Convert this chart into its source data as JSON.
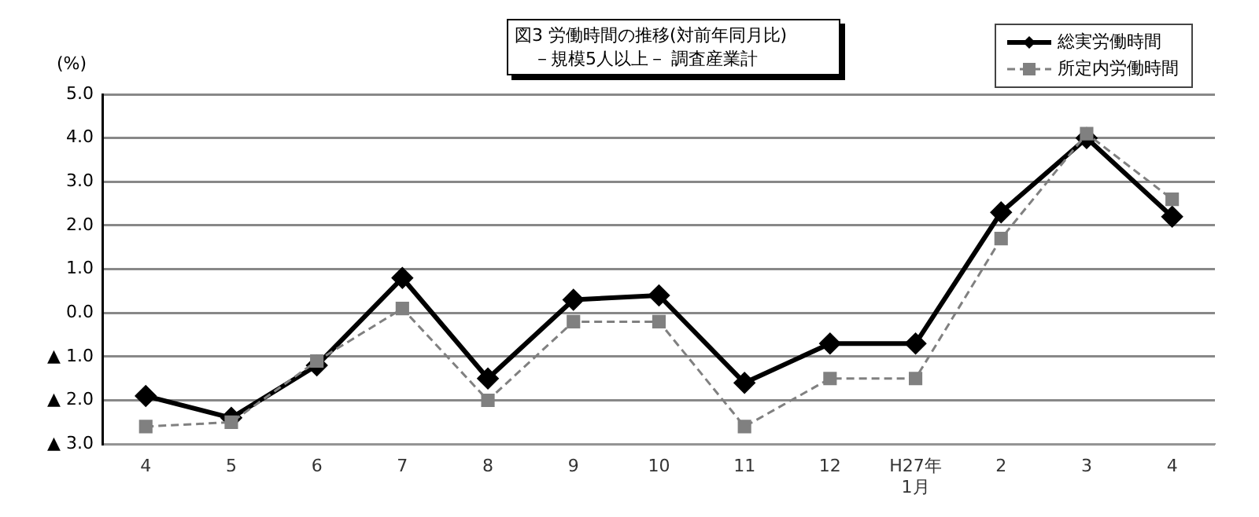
{
  "chart_data": {
    "type": "line",
    "title": "図3 労働時間の推移(対前年同月比)",
    "subtitle": "－規模5人以上－ 調査産業計",
    "ylabel": "(%)",
    "categories": [
      "4",
      "5",
      "6",
      "7",
      "8",
      "9",
      "10",
      "11",
      "12",
      "H27年\n1月",
      "2",
      "3",
      "4"
    ],
    "series": [
      {
        "name": "総実労働時間",
        "color": "#000000",
        "marker": "diamond",
        "line_style": "solid",
        "values": [
          -1.9,
          -2.4,
          -1.2,
          0.8,
          -1.5,
          0.3,
          0.4,
          -1.6,
          -0.7,
          -0.7,
          2.3,
          4.0,
          2.2
        ]
      },
      {
        "name": "所定内労働時間",
        "color": "#808080",
        "marker": "square",
        "line_style": "dashed",
        "values": [
          -2.6,
          -2.5,
          -1.1,
          0.1,
          -2.0,
          -0.2,
          -0.2,
          -2.6,
          -1.5,
          -1.5,
          1.7,
          4.1,
          2.6
        ]
      }
    ],
    "ylim": [
      -3,
      5
    ],
    "yticks": [
      {
        "value": -3,
        "label": "▲ 3.0"
      },
      {
        "value": -2,
        "label": "▲ 2.0"
      },
      {
        "value": -1,
        "label": "▲ 1.0"
      },
      {
        "value": 0,
        "label": "0.0"
      },
      {
        "value": 1,
        "label": "1.0"
      },
      {
        "value": 2,
        "label": "2.0"
      },
      {
        "value": 3,
        "label": "3.0"
      },
      {
        "value": 4,
        "label": "4.0"
      },
      {
        "value": 5,
        "label": "5.0"
      }
    ],
    "grid": "y",
    "legend": "top right"
  }
}
